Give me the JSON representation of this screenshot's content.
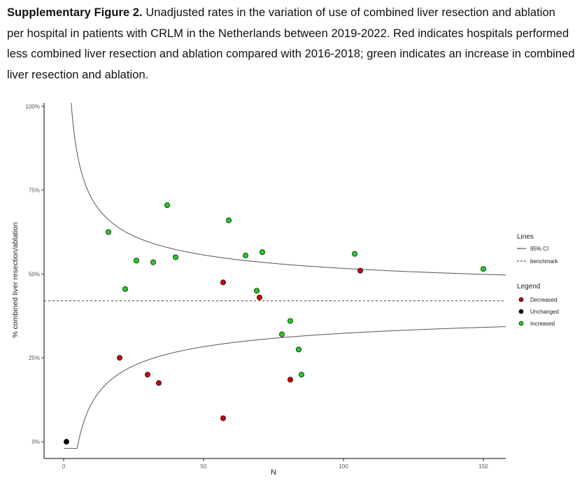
{
  "caption": {
    "label": "Supplementary Figure 2.",
    "text": "Unadjusted rates in the variation of use of combined liver resection and ablation per hospital in patients with CRLM in the Netherlands between 2019-2022.  Red indicates hospitals performed less combined liver resection and ablation compared with 2016-2018; green indicates an increase in combined liver resection and ablation."
  },
  "chart_data": {
    "type": "scatter",
    "title": "",
    "xlabel": "N",
    "ylabel": "% combined liver resection/ablation",
    "xlim": [
      -7,
      158
    ],
    "ylim": [
      -5,
      101
    ],
    "x_ticks": [
      0,
      50,
      100,
      150
    ],
    "x_tick_labels": [
      "0",
      "50",
      "100",
      "150"
    ],
    "y_ticks": [
      0,
      25,
      50,
      75,
      100
    ],
    "y_tick_labels": [
      "0%",
      "25%",
      "50%",
      "75%",
      "100%"
    ],
    "grid": false,
    "benchmark": 42,
    "lines_legend": {
      "title": "Lines",
      "items": [
        {
          "label": "95% CI",
          "style": "solid"
        },
        {
          "label": "benchmark",
          "style": "dashed"
        }
      ]
    },
    "points_legend": {
      "title": "Legend",
      "items": [
        {
          "label": "Decreased",
          "color": "#cc0000"
        },
        {
          "label": "Unchanged",
          "color": "#000000"
        },
        {
          "label": "Increased",
          "color": "#22cc22"
        }
      ]
    },
    "series": [
      {
        "name": "Decreased",
        "color": "#cc0000",
        "points": [
          [
            20,
            25
          ],
          [
            30,
            20
          ],
          [
            34,
            17.5
          ],
          [
            57,
            47.5
          ],
          [
            57,
            7
          ],
          [
            70,
            43
          ],
          [
            81,
            18.5
          ],
          [
            106,
            51
          ]
        ]
      },
      {
        "name": "Unchanged",
        "color": "#000000",
        "points": [
          [
            1,
            0
          ]
        ]
      },
      {
        "name": "Increased",
        "color": "#22cc22",
        "points": [
          [
            16,
            62.5
          ],
          [
            22,
            45.5
          ],
          [
            26,
            54
          ],
          [
            32,
            53.5
          ],
          [
            37,
            70.5
          ],
          [
            40,
            55
          ],
          [
            59,
            66
          ],
          [
            65,
            55.5
          ],
          [
            69,
            45
          ],
          [
            71,
            56.5
          ],
          [
            78,
            32
          ],
          [
            81,
            36
          ],
          [
            84,
            27.5
          ],
          [
            85,
            20
          ],
          [
            104,
            56
          ],
          [
            150,
            51.5
          ]
        ]
      }
    ]
  }
}
